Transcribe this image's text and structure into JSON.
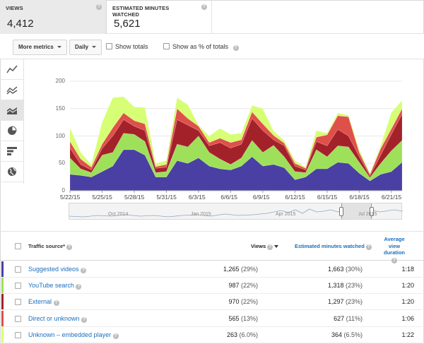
{
  "metrics": [
    {
      "label": "VIEWS",
      "value": "4,412"
    },
    {
      "label": "ESTIMATED MINUTES WATCHED",
      "value": "5,621"
    }
  ],
  "toolbar": {
    "more_metrics": "More metrics",
    "granularity": "Daily",
    "show_totals": "Show totals",
    "show_pct": "Show as % of totals"
  },
  "rail_icons": [
    "line-chart-icon",
    "multi-line-chart-icon",
    "stacked-area-chart-icon",
    "pie-chart-icon",
    "bar-chart-icon",
    "globe-icon"
  ],
  "chart_data": {
    "type": "area",
    "stacked": true,
    "y_ticks": [
      "0",
      "50",
      "100",
      "150",
      "200"
    ],
    "ylim": [
      0,
      200
    ],
    "x_tick_labels": [
      "5/22/15",
      "5/25/15",
      "5/28/15",
      "5/31/15",
      "6/3/15",
      "6/6/15",
      "6/9/15",
      "6/12/15",
      "6/15/15",
      "6/18/15",
      "6/21/15"
    ],
    "series": [
      {
        "name": "Suggested videos",
        "color": "#4a3fa3",
        "values": [
          30,
          28,
          25,
          35,
          45,
          75,
          75,
          65,
          25,
          25,
          55,
          50,
          60,
          45,
          40,
          38,
          45,
          62,
          45,
          48,
          42,
          20,
          25,
          40,
          40,
          52,
          50,
          32,
          18,
          30,
          35,
          52
        ]
      },
      {
        "name": "YouTube search",
        "color": "#9ee05a",
        "values": [
          30,
          12,
          8,
          30,
          25,
          30,
          28,
          25,
          8,
          10,
          30,
          30,
          40,
          25,
          18,
          10,
          15,
          30,
          25,
          35,
          20,
          15,
          8,
          35,
          22,
          30,
          30,
          20,
          6,
          20,
          38,
          40
        ]
      },
      {
        "name": "External",
        "color": "#a3222a",
        "values": [
          18,
          8,
          5,
          12,
          30,
          25,
          15,
          20,
          8,
          8,
          45,
          40,
          10,
          12,
          30,
          30,
          25,
          40,
          40,
          10,
          20,
          10,
          5,
          15,
          20,
          30,
          20,
          10,
          3,
          15,
          30,
          48
        ]
      },
      {
        "name": "Direct or unknown",
        "color": "#e0504a",
        "values": [
          12,
          10,
          5,
          8,
          15,
          12,
          10,
          12,
          3,
          5,
          20,
          12,
          8,
          6,
          8,
          10,
          8,
          12,
          12,
          8,
          5,
          5,
          3,
          8,
          20,
          25,
          35,
          8,
          3,
          12,
          10,
          10
        ]
      },
      {
        "name": "Unknown – embedded player",
        "color": "#d6ff75",
        "values": [
          25,
          12,
          5,
          40,
          55,
          30,
          25,
          30,
          6,
          7,
          20,
          25,
          2,
          12,
          18,
          15,
          12,
          12,
          28,
          8,
          5,
          5,
          2,
          12,
          3,
          5,
          3,
          5,
          2,
          5,
          30,
          15
        ]
      }
    ]
  },
  "timeline_labels": [
    "Oct 2014",
    "Jan 2015",
    "Apr 2015",
    "Jul 2015"
  ],
  "table": {
    "headers": {
      "source": "Traffic source*",
      "views": "Views",
      "minutes": "Estimated minutes watched",
      "duration_line1": "Average",
      "duration_line2": "view",
      "duration_line3": "duration"
    },
    "rows": [
      {
        "source": "Suggested videos",
        "views": "1,265",
        "views_pct": "(29%)",
        "minutes": "1,663",
        "minutes_pct": "(30%)",
        "duration": "1:18",
        "color": "#4a3fa3"
      },
      {
        "source": "YouTube search",
        "views": "987",
        "views_pct": "(22%)",
        "minutes": "1,318",
        "minutes_pct": "(23%)",
        "duration": "1:20",
        "color": "#9ee05a"
      },
      {
        "source": "External",
        "views": "970",
        "views_pct": "(22%)",
        "minutes": "1,297",
        "minutes_pct": "(23%)",
        "duration": "1:20",
        "color": "#a3222a"
      },
      {
        "source": "Direct or unknown",
        "views": "565",
        "views_pct": "(13%)",
        "minutes": "627",
        "minutes_pct": "(11%)",
        "duration": "1:06",
        "color": "#e0504a"
      },
      {
        "source": "Unknown – embedded player",
        "views": "263",
        "views_pct": "(6.0%)",
        "minutes": "364",
        "minutes_pct": "(6.5%)",
        "duration": "1:22",
        "color": "#d6ff75"
      }
    ]
  }
}
